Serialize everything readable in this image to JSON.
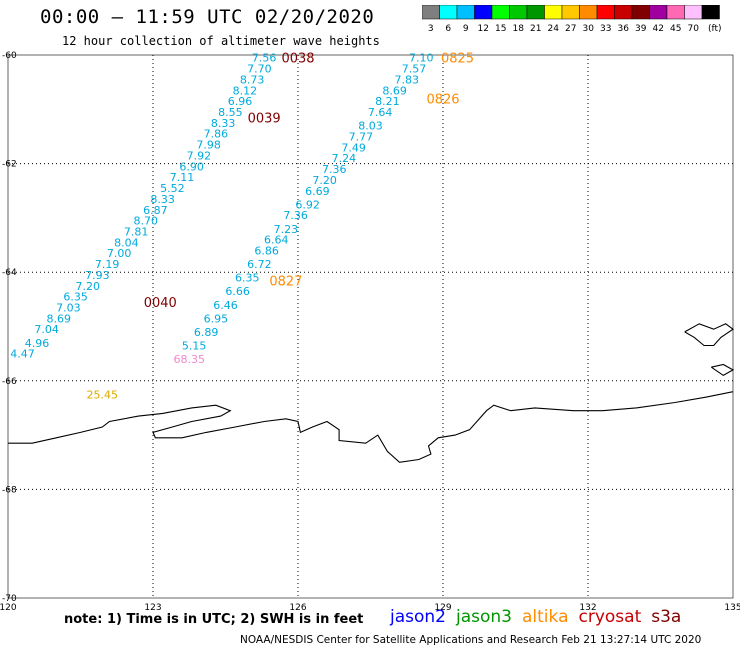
{
  "header": {
    "title": "00:00 – 11:59 UTC 02/20/2020",
    "subtitle": "12 hour collection of altimeter wave heights"
  },
  "colorbar": {
    "labels": [
      "3",
      "6",
      "9",
      "12",
      "15",
      "18",
      "21",
      "24",
      "27",
      "30",
      "33",
      "36",
      "39",
      "42",
      "45",
      "70",
      "(ft)"
    ],
    "colors": [
      "#7f7f7f",
      "#00ffff",
      "#00bfff",
      "#0000ff",
      "#00ff00",
      "#00c800",
      "#009600",
      "#ffff00",
      "#ffc800",
      "#ff8c00",
      "#ff0000",
      "#c80000",
      "#800000",
      "#a000a0",
      "#ff69b4",
      "#ffc0ff",
      "#000000"
    ]
  },
  "map": {
    "lon_ticks": [
      "120",
      "123",
      "126",
      "129",
      "132",
      "135"
    ],
    "lat_ticks": [
      "-60",
      "-62",
      "-64",
      "-66",
      "-68",
      "-70"
    ],
    "lon_range": [
      120,
      135
    ],
    "lat_range": [
      -70,
      -60
    ],
    "grid": "dotted"
  },
  "satellites": [
    {
      "name": "jason2",
      "color": "#0000ff"
    },
    {
      "name": "jason3",
      "color": "#009600"
    },
    {
      "name": "altika",
      "color": "#ff8c00"
    },
    {
      "name": "cryosat",
      "color": "#c80000"
    },
    {
      "name": "s3a",
      "color": "#800000"
    }
  ],
  "tracks": [
    {
      "name": "track-west",
      "color": "#00aadd",
      "readings": [
        {
          "lon": 125.3,
          "lat": -60.05,
          "value": "7.56"
        },
        {
          "lon": 125.2,
          "lat": -60.25,
          "value": "7.70"
        },
        {
          "lon": 125.05,
          "lat": -60.45,
          "value": "8.73"
        },
        {
          "lon": 124.9,
          "lat": -60.65,
          "value": "8.12"
        },
        {
          "lon": 124.8,
          "lat": -60.85,
          "value": "6.96"
        },
        {
          "lon": 124.6,
          "lat": -61.05,
          "value": "8.55"
        },
        {
          "lon": 124.45,
          "lat": -61.25,
          "value": "8.33"
        },
        {
          "lon": 124.3,
          "lat": -61.45,
          "value": "7.86"
        },
        {
          "lon": 124.15,
          "lat": -61.65,
          "value": "7.98"
        },
        {
          "lon": 123.95,
          "lat": -61.85,
          "value": "7.92"
        },
        {
          "lon": 123.8,
          "lat": -62.05,
          "value": "6.90"
        },
        {
          "lon": 123.6,
          "lat": -62.25,
          "value": "7.11"
        },
        {
          "lon": 123.4,
          "lat": -62.45,
          "value": "5.52"
        },
        {
          "lon": 123.2,
          "lat": -62.65,
          "value": "8.33"
        },
        {
          "lon": 123.05,
          "lat": -62.85,
          "value": "6.87"
        },
        {
          "lon": 122.85,
          "lat": -63.05,
          "value": "8.70"
        },
        {
          "lon": 122.65,
          "lat": -63.25,
          "value": "7.81"
        },
        {
          "lon": 122.45,
          "lat": -63.45,
          "value": "8.04"
        },
        {
          "lon": 122.3,
          "lat": -63.65,
          "value": "7.00"
        },
        {
          "lon": 122.05,
          "lat": -63.85,
          "value": "7.19"
        },
        {
          "lon": 121.85,
          "lat": -64.05,
          "value": "7.93"
        },
        {
          "lon": 121.65,
          "lat": -64.25,
          "value": "7.20"
        },
        {
          "lon": 121.4,
          "lat": -64.45,
          "value": "6.35"
        },
        {
          "lon": 121.25,
          "lat": -64.65,
          "value": "7.03"
        },
        {
          "lon": 121.05,
          "lat": -64.85,
          "value": "8.69"
        },
        {
          "lon": 120.8,
          "lat": -65.05,
          "value": "7.04"
        },
        {
          "lon": 120.6,
          "lat": -65.3,
          "value": "4.96"
        },
        {
          "lon": 120.3,
          "lat": -65.5,
          "value": "4.47"
        }
      ]
    },
    {
      "name": "track-east",
      "color": "#00aadd",
      "readings": [
        {
          "lon": 128.55,
          "lat": -60.05,
          "value": "7.10"
        },
        {
          "lon": 128.4,
          "lat": -60.25,
          "value": "7.57"
        },
        {
          "lon": 128.25,
          "lat": -60.45,
          "value": "7.83"
        },
        {
          "lon": 128.0,
          "lat": -60.65,
          "value": "8.69"
        },
        {
          "lon": 127.85,
          "lat": -60.85,
          "value": "8.21"
        },
        {
          "lon": 127.7,
          "lat": -61.05,
          "value": "7.64"
        },
        {
          "lon": 127.5,
          "lat": -61.3,
          "value": "8.03"
        },
        {
          "lon": 127.3,
          "lat": -61.5,
          "value": "7.77"
        },
        {
          "lon": 127.15,
          "lat": -61.7,
          "value": "7.49"
        },
        {
          "lon": 126.95,
          "lat": -61.9,
          "value": "7.24"
        },
        {
          "lon": 126.75,
          "lat": -62.1,
          "value": "7.36"
        },
        {
          "lon": 126.55,
          "lat": -62.3,
          "value": "7.20"
        },
        {
          "lon": 126.4,
          "lat": -62.5,
          "value": "6.69"
        },
        {
          "lon": 126.2,
          "lat": -62.75,
          "value": "6.92"
        },
        {
          "lon": 125.95,
          "lat": -62.95,
          "value": "7.36"
        },
        {
          "lon": 125.75,
          "lat": -63.2,
          "value": "7.23"
        },
        {
          "lon": 125.55,
          "lat": -63.4,
          "value": "6.64"
        },
        {
          "lon": 125.35,
          "lat": -63.6,
          "value": "6.86"
        },
        {
          "lon": 125.2,
          "lat": -63.85,
          "value": "6.72"
        },
        {
          "lon": 124.95,
          "lat": -64.1,
          "value": "6.35"
        },
        {
          "lon": 124.75,
          "lat": -64.35,
          "value": "6.66"
        },
        {
          "lon": 124.5,
          "lat": -64.6,
          "value": "6.46"
        },
        {
          "lon": 124.3,
          "lat": -64.85,
          "value": "6.95"
        },
        {
          "lon": 124.1,
          "lat": -65.1,
          "value": "6.89"
        },
        {
          "lon": 123.85,
          "lat": -65.35,
          "value": "5.15"
        }
      ]
    },
    {
      "name": "track-outliers",
      "readings": [
        {
          "lon": 123.75,
          "lat": -65.6,
          "value": "68.35",
          "color": "#ee88cc"
        },
        {
          "lon": 121.95,
          "lat": -66.25,
          "value": "25.45",
          "color": "#ddaa00"
        }
      ]
    }
  ],
  "pass_times": [
    {
      "label": "0038",
      "lon": 126.0,
      "lat": -60.05,
      "color": "#800000"
    },
    {
      "label": "0039",
      "lon": 125.3,
      "lat": -61.15,
      "color": "#800000"
    },
    {
      "label": "0040",
      "lon": 123.15,
      "lat": -64.55,
      "color": "#800000"
    },
    {
      "label": "0825",
      "lon": 129.3,
      "lat": -60.05,
      "color": "#ff8c00"
    },
    {
      "label": "0826",
      "lon": 129.0,
      "lat": -60.8,
      "color": "#ff8c00"
    },
    {
      "label": "0827",
      "lon": 125.75,
      "lat": -64.15,
      "color": "#ff8c00"
    }
  ],
  "coastline": [
    [
      120.0,
      -67.15
    ],
    [
      120.5,
      -67.15
    ],
    [
      121.0,
      -67.05
    ],
    [
      121.5,
      -66.95
    ],
    [
      121.95,
      -66.85
    ],
    [
      122.1,
      -66.75
    ],
    [
      122.7,
      -66.65
    ],
    [
      123.2,
      -66.6
    ],
    [
      123.8,
      -66.5
    ],
    [
      124.3,
      -66.45
    ],
    [
      124.6,
      -66.55
    ],
    [
      124.4,
      -66.65
    ],
    [
      123.8,
      -66.75
    ],
    [
      123.4,
      -66.85
    ],
    [
      123.0,
      -66.95
    ],
    [
      123.05,
      -67.05
    ],
    [
      123.6,
      -67.05
    ],
    [
      124.1,
      -66.95
    ],
    [
      124.7,
      -66.85
    ],
    [
      125.3,
      -66.75
    ],
    [
      125.75,
      -66.7
    ],
    [
      126.0,
      -66.75
    ],
    [
      126.05,
      -66.95
    ],
    [
      126.3,
      -66.85
    ],
    [
      126.6,
      -66.75
    ],
    [
      126.85,
      -66.9
    ],
    [
      126.85,
      -67.1
    ],
    [
      127.4,
      -67.15
    ],
    [
      127.65,
      -67.0
    ],
    [
      127.85,
      -67.3
    ],
    [
      128.1,
      -67.5
    ],
    [
      128.5,
      -67.45
    ],
    [
      128.75,
      -67.35
    ],
    [
      128.7,
      -67.2
    ],
    [
      128.9,
      -67.05
    ],
    [
      129.25,
      -67.0
    ],
    [
      129.55,
      -66.9
    ],
    [
      129.9,
      -66.55
    ],
    [
      130.05,
      -66.45
    ],
    [
      130.4,
      -66.55
    ],
    [
      130.9,
      -66.5
    ],
    [
      131.7,
      -66.55
    ],
    [
      132.3,
      -66.55
    ],
    [
      133.0,
      -66.5
    ],
    [
      133.8,
      -66.4
    ],
    [
      134.45,
      -66.3
    ],
    [
      135.0,
      -66.2
    ]
  ],
  "coastline_islands": [
    [
      [
        134.0,
        -65.1
      ],
      [
        134.3,
        -64.95
      ],
      [
        134.6,
        -65.05
      ],
      [
        134.85,
        -64.95
      ],
      [
        135.0,
        -65.05
      ],
      [
        134.75,
        -65.2
      ],
      [
        134.6,
        -65.35
      ],
      [
        134.4,
        -65.35
      ],
      [
        134.2,
        -65.2
      ],
      [
        134.0,
        -65.1
      ]
    ],
    [
      [
        134.55,
        -65.75
      ],
      [
        134.8,
        -65.7
      ],
      [
        135.0,
        -65.8
      ],
      [
        134.8,
        -65.9
      ],
      [
        134.55,
        -65.75
      ]
    ]
  ],
  "footer": {
    "note": "note:  1) Time is in UTC;  2) SWH is in feet",
    "credit": "NOAA/NESDIS Center for Satellite Applications and Research     Feb 21 13:27:14 UTC 2020"
  }
}
